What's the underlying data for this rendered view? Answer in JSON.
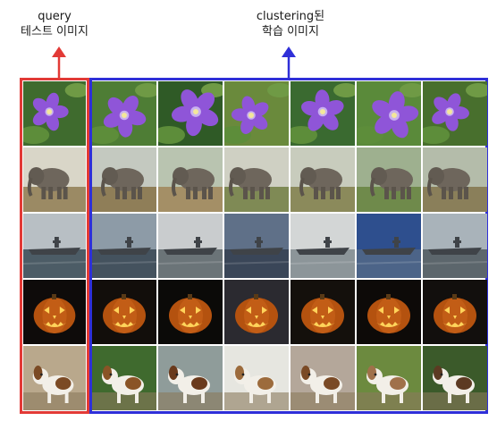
{
  "labels": {
    "query_line1": "query",
    "query_line2": "테스트 이미지",
    "train_line1": "clustering된",
    "train_line2": "학습 이미지"
  },
  "colors": {
    "query": "#e23a36",
    "train": "#2f2fd8"
  },
  "rows": [
    {
      "subject": "purple-flower"
    },
    {
      "subject": "elephant"
    },
    {
      "subject": "aircraft-carrier"
    },
    {
      "subject": "jack-o-lantern"
    },
    {
      "subject": "dog"
    }
  ],
  "train_columns": 6
}
